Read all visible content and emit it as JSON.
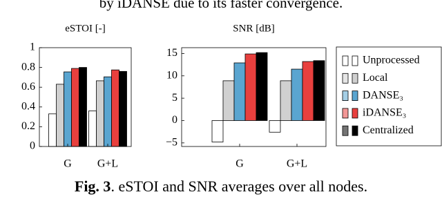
{
  "header_text": "by iDANSE due to its faster convergence.",
  "chart_data": [
    {
      "type": "bar",
      "title": "eSTOI [-]",
      "categories": [
        "G",
        "G+L"
      ],
      "ylim": [
        0,
        1
      ],
      "yticks": [
        0,
        0.2,
        0.4,
        0.6,
        0.8,
        1
      ],
      "series": [
        {
          "name": "Unprocessed",
          "color": "#ffffff",
          "values": [
            0.33,
            0.36
          ]
        },
        {
          "name": "Local",
          "color": "#d0d0d0",
          "values": [
            0.63,
            0.665
          ]
        },
        {
          "name": "DANSE₃",
          "color": "#5aa5d0",
          "values": [
            0.755,
            0.705
          ]
        },
        {
          "name": "iDANSE₃",
          "color": "#e8403e",
          "values": [
            0.79,
            0.775
          ]
        },
        {
          "name": "Centralized",
          "color": "#000000",
          "values": [
            0.8,
            0.76
          ]
        }
      ]
    },
    {
      "type": "bar",
      "title": "SNR [dB]",
      "categories": [
        "G",
        "G+L"
      ],
      "ylim": [
        -5.8,
        16.3
      ],
      "yticks": [
        {
          "value": -5,
          "label": "−5"
        },
        0,
        5,
        10,
        15
      ],
      "series": [
        {
          "color": "#ffffff",
          "values": [
            -4.8,
            -2.6
          ]
        },
        {
          "color": "#d0d0d0",
          "values": [
            8.9,
            8.9
          ]
        },
        {
          "color": "#5aa5d0",
          "values": [
            12.9,
            11.5
          ]
        },
        {
          "color": "#e8403e",
          "values": [
            14.9,
            13.2
          ]
        },
        {
          "color": "#000000",
          "values": [
            15.2,
            13.4
          ]
        }
      ]
    }
  ],
  "caption": {
    "label": "Fig. 3",
    "text": ". eSTOI and SNR averages over all nodes."
  }
}
